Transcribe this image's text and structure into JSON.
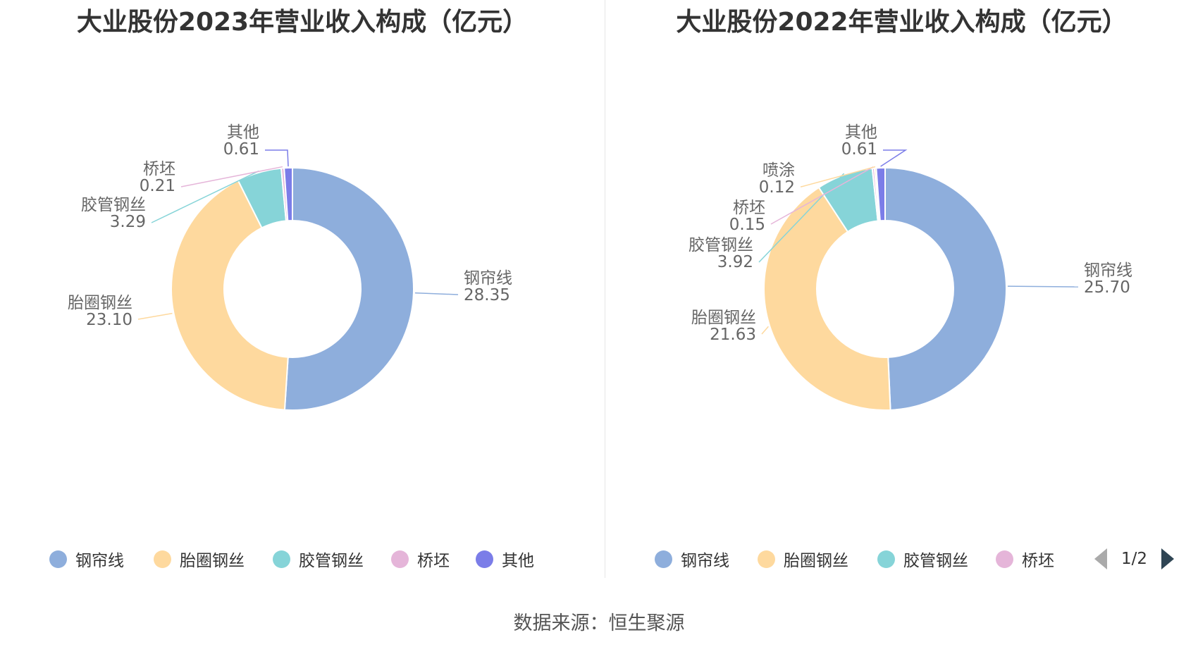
{
  "colors": {
    "钢帘线": "#8eaedc",
    "胎圈钢丝": "#fed99e",
    "胶管钢丝": "#86d4d8",
    "桥坯": "#e5b5d9",
    "喷涂": "#fed99e",
    "其他": "#7b7de8"
  },
  "chart_data": [
    {
      "type": "pie",
      "title": "大业股份2023年营业收入构成（亿元）",
      "donut": true,
      "slices": [
        {
          "name": "钢帘线",
          "value": 28.35
        },
        {
          "name": "胎圈钢丝",
          "value": 23.1
        },
        {
          "name": "胶管钢丝",
          "value": 3.29
        },
        {
          "name": "桥坯",
          "value": 0.21
        },
        {
          "name": "其他",
          "value": 0.61
        }
      ],
      "value_labels": [
        "28.35",
        "23.10",
        "3.29",
        "0.21",
        "0.61"
      ],
      "legend": [
        "钢帘线",
        "胎圈钢丝",
        "胶管钢丝",
        "桥坯",
        "其他"
      ],
      "legend_position": "bottom"
    },
    {
      "type": "pie",
      "title": "大业股份2022年营业收入构成（亿元）",
      "donut": true,
      "slices": [
        {
          "name": "钢帘线",
          "value": 25.7
        },
        {
          "name": "胎圈钢丝",
          "value": 21.63
        },
        {
          "name": "胶管钢丝",
          "value": 3.92
        },
        {
          "name": "桥坯",
          "value": 0.15
        },
        {
          "name": "喷涂",
          "value": 0.12
        },
        {
          "name": "其他",
          "value": 0.61
        }
      ],
      "value_labels": [
        "25.70",
        "21.63",
        "3.92",
        "0.15",
        "0.12",
        "0.61"
      ],
      "legend": [
        "钢帘线",
        "胎圈钢丝",
        "胶管钢丝",
        "桥坯"
      ],
      "legend_position": "bottom",
      "legend_page": "1/2"
    }
  ],
  "source": "数据来源：恒生聚源"
}
